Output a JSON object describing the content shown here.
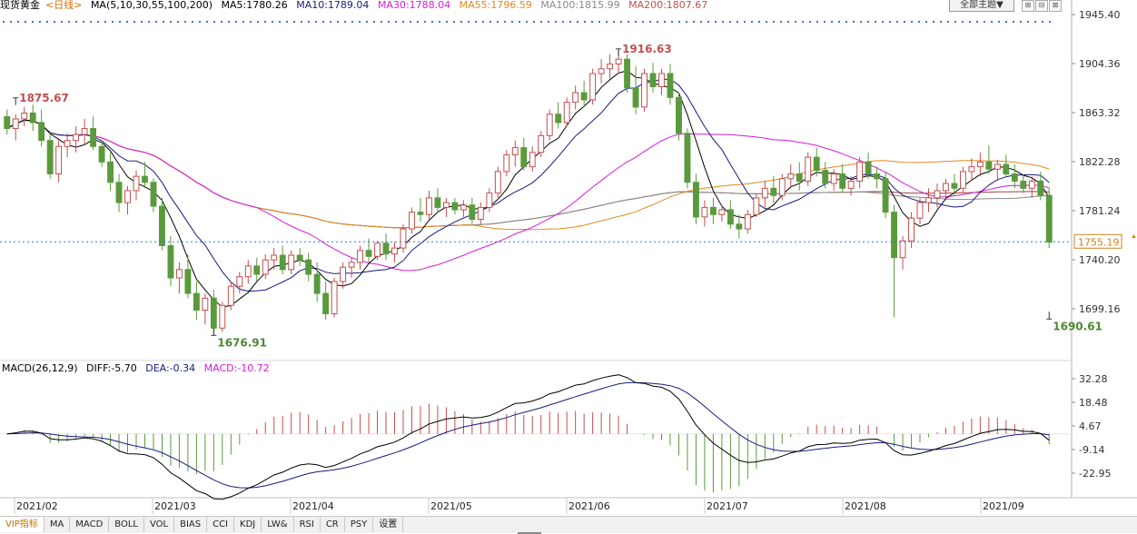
{
  "legend": {
    "instrument": "现货黄金",
    "period": "<日线>",
    "ma_label": "MA(5,10,30,55,100,200)",
    "ma5": "MA5:1780.26",
    "ma10": "MA10:1789.04",
    "ma30": "MA30:1788.04",
    "ma55": "MA55:1796.59",
    "ma100": "MA100:1815.99",
    "ma200": "MA200:1807.67"
  },
  "theme_button": "全部主题▼",
  "window_buttons": [
    "⊞",
    "⊟",
    "⊠"
  ],
  "macd_legend": {
    "label": "MACD(26,12,9)",
    "diff": "DIFF:-5.70",
    "dea": "DEA:-0.34",
    "macd": "MACD:-10.72"
  },
  "current_price": "1755.19",
  "tabs": [
    "VIP指标",
    "MA",
    "MACD",
    "BOLL",
    "VOL",
    "BIAS",
    "CCI",
    "KDJ",
    "LW&",
    "RSI",
    "CR",
    "PSY",
    "设置"
  ],
  "colors": {
    "up": "#c0504d",
    "down": "#5a9a3c",
    "ma5": "#000000",
    "ma10": "#1a1a80",
    "ma30": "#d81bd8",
    "ma55": "#e08a1e",
    "ma100": "#8a8a8a",
    "ma200": "#a0403a",
    "diff": "#000000",
    "dea": "#1a1a80",
    "high_label": "#c0504d",
    "low_label": "#4a8a30",
    "price_box": "#d08020"
  },
  "chart_data": {
    "type": "candlestick",
    "price_axis_ticks": [
      "1945.40",
      "1904.36",
      "1863.32",
      "1822.28",
      "1781.24",
      "1740.20",
      "1699.16"
    ],
    "price_axis_values": [
      1945.4,
      1904.36,
      1863.32,
      1822.28,
      1781.24,
      1740.2,
      1699.16
    ],
    "macd_axis_ticks": [
      "32.28",
      "18.48",
      "4.67",
      "-9.14",
      "-22.95"
    ],
    "macd_axis_values": [
      32.28,
      18.48,
      4.67,
      -9.14,
      -22.95
    ],
    "x_labels": [
      "2021/02",
      "2021/03",
      "2021/04",
      "2021/05",
      "2021/06",
      "2021/07",
      "2021/08",
      "2021/09"
    ],
    "annotations": [
      {
        "text": "1875.67",
        "value": 1875.67,
        "kind": "high"
      },
      {
        "text": "1916.63",
        "value": 1916.63,
        "kind": "high"
      },
      {
        "text": "1676.91",
        "value": 1676.91,
        "kind": "low"
      },
      {
        "text": "1690.61",
        "value": 1690.61,
        "kind": "low"
      }
    ],
    "ohlc": [
      [
        1860,
        1866,
        1845,
        1850
      ],
      [
        1850,
        1862,
        1840,
        1858
      ],
      [
        1858,
        1868,
        1852,
        1863
      ],
      [
        1863,
        1870,
        1848,
        1855
      ],
      [
        1855,
        1866,
        1835,
        1840
      ],
      [
        1840,
        1848,
        1808,
        1812
      ],
      [
        1812,
        1840,
        1805,
        1835
      ],
      [
        1835,
        1846,
        1826,
        1840
      ],
      [
        1840,
        1852,
        1830,
        1845
      ],
      [
        1845,
        1858,
        1836,
        1850
      ],
      [
        1850,
        1860,
        1832,
        1835
      ],
      [
        1835,
        1840,
        1818,
        1822
      ],
      [
        1822,
        1830,
        1798,
        1805
      ],
      [
        1805,
        1812,
        1780,
        1788
      ],
      [
        1788,
        1802,
        1778,
        1798
      ],
      [
        1798,
        1815,
        1790,
        1810
      ],
      [
        1810,
        1822,
        1800,
        1805
      ],
      [
        1805,
        1808,
        1780,
        1785
      ],
      [
        1785,
        1792,
        1748,
        1752
      ],
      [
        1752,
        1760,
        1718,
        1725
      ],
      [
        1725,
        1738,
        1712,
        1732
      ],
      [
        1732,
        1745,
        1708,
        1712
      ],
      [
        1712,
        1722,
        1690,
        1698
      ],
      [
        1698,
        1712,
        1686,
        1708
      ],
      [
        1708,
        1715,
        1678,
        1683
      ],
      [
        1683,
        1705,
        1680,
        1702
      ],
      [
        1702,
        1722,
        1698,
        1718
      ],
      [
        1718,
        1730,
        1712,
        1726
      ],
      [
        1726,
        1740,
        1720,
        1735
      ],
      [
        1735,
        1742,
        1722,
        1728
      ],
      [
        1728,
        1745,
        1724,
        1740
      ],
      [
        1740,
        1750,
        1732,
        1744
      ],
      [
        1744,
        1752,
        1728,
        1732
      ],
      [
        1732,
        1748,
        1728,
        1744
      ],
      [
        1744,
        1750,
        1735,
        1740
      ],
      [
        1740,
        1746,
        1722,
        1728
      ],
      [
        1728,
        1738,
        1705,
        1712
      ],
      [
        1712,
        1722,
        1690,
        1695
      ],
      [
        1695,
        1725,
        1692,
        1722
      ],
      [
        1722,
        1738,
        1716,
        1734
      ],
      [
        1734,
        1742,
        1725,
        1738
      ],
      [
        1738,
        1752,
        1732,
        1748
      ],
      [
        1748,
        1758,
        1738,
        1743
      ],
      [
        1743,
        1756,
        1740,
        1754
      ],
      [
        1754,
        1762,
        1740,
        1745
      ],
      [
        1745,
        1755,
        1738,
        1750
      ],
      [
        1750,
        1770,
        1746,
        1766
      ],
      [
        1766,
        1784,
        1762,
        1780
      ],
      [
        1780,
        1792,
        1772,
        1778
      ],
      [
        1778,
        1798,
        1774,
        1792
      ],
      [
        1792,
        1800,
        1780,
        1784
      ],
      [
        1784,
        1792,
        1776,
        1788
      ],
      [
        1788,
        1792,
        1778,
        1782
      ],
      [
        1782,
        1790,
        1776,
        1786
      ],
      [
        1786,
        1792,
        1770,
        1774
      ],
      [
        1774,
        1788,
        1770,
        1784
      ],
      [
        1784,
        1800,
        1780,
        1796
      ],
      [
        1796,
        1818,
        1792,
        1814
      ],
      [
        1814,
        1832,
        1810,
        1828
      ],
      [
        1828,
        1840,
        1818,
        1834
      ],
      [
        1834,
        1842,
        1815,
        1818
      ],
      [
        1818,
        1835,
        1814,
        1830
      ],
      [
        1830,
        1848,
        1826,
        1844
      ],
      [
        1844,
        1866,
        1840,
        1862
      ],
      [
        1862,
        1872,
        1850,
        1855
      ],
      [
        1855,
        1876,
        1852,
        1872
      ],
      [
        1872,
        1886,
        1866,
        1880
      ],
      [
        1880,
        1890,
        1868,
        1874
      ],
      [
        1874,
        1900,
        1870,
        1896
      ],
      [
        1896,
        1908,
        1888,
        1900
      ],
      [
        1900,
        1912,
        1892,
        1904
      ],
      [
        1904,
        1916,
        1896,
        1908
      ],
      [
        1908,
        1912,
        1880,
        1884
      ],
      [
        1884,
        1902,
        1862,
        1868
      ],
      [
        1868,
        1900,
        1864,
        1896
      ],
      [
        1896,
        1905,
        1880,
        1885
      ],
      [
        1885,
        1900,
        1878,
        1896
      ],
      [
        1896,
        1904,
        1870,
        1876
      ],
      [
        1876,
        1880,
        1840,
        1846
      ],
      [
        1846,
        1850,
        1800,
        1805
      ],
      [
        1805,
        1812,
        1770,
        1776
      ],
      [
        1776,
        1790,
        1768,
        1784
      ],
      [
        1784,
        1792,
        1770,
        1778
      ],
      [
        1778,
        1786,
        1772,
        1782
      ],
      [
        1782,
        1790,
        1766,
        1770
      ],
      [
        1770,
        1778,
        1758,
        1766
      ],
      [
        1766,
        1782,
        1762,
        1778
      ],
      [
        1778,
        1796,
        1776,
        1792
      ],
      [
        1792,
        1806,
        1784,
        1800
      ],
      [
        1800,
        1810,
        1788,
        1794
      ],
      [
        1794,
        1812,
        1790,
        1808
      ],
      [
        1808,
        1820,
        1800,
        1812
      ],
      [
        1812,
        1822,
        1798,
        1806
      ],
      [
        1806,
        1830,
        1802,
        1826
      ],
      [
        1826,
        1834,
        1810,
        1815
      ],
      [
        1815,
        1822,
        1800,
        1804
      ],
      [
        1804,
        1816,
        1798,
        1812
      ],
      [
        1812,
        1820,
        1796,
        1800
      ],
      [
        1800,
        1810,
        1794,
        1806
      ],
      [
        1806,
        1826,
        1800,
        1822
      ],
      [
        1822,
        1830,
        1808,
        1812
      ],
      [
        1812,
        1818,
        1800,
        1808
      ],
      [
        1808,
        1814,
        1775,
        1780
      ],
      [
        1780,
        1786,
        1692,
        1742
      ],
      [
        1742,
        1760,
        1732,
        1756
      ],
      [
        1756,
        1780,
        1750,
        1775
      ],
      [
        1775,
        1792,
        1770,
        1788
      ],
      [
        1788,
        1800,
        1780,
        1792
      ],
      [
        1792,
        1804,
        1784,
        1798
      ],
      [
        1798,
        1808,
        1790,
        1804
      ],
      [
        1804,
        1812,
        1794,
        1800
      ],
      [
        1800,
        1818,
        1796,
        1814
      ],
      [
        1814,
        1825,
        1806,
        1818
      ],
      [
        1818,
        1830,
        1810,
        1822
      ],
      [
        1822,
        1836,
        1812,
        1816
      ],
      [
        1816,
        1824,
        1806,
        1820
      ],
      [
        1820,
        1828,
        1810,
        1812
      ],
      [
        1812,
        1820,
        1800,
        1806
      ],
      [
        1806,
        1812,
        1796,
        1800
      ],
      [
        1800,
        1810,
        1792,
        1806
      ],
      [
        1806,
        1814,
        1790,
        1794
      ],
      [
        1794,
        1800,
        1750,
        1755
      ]
    ]
  }
}
